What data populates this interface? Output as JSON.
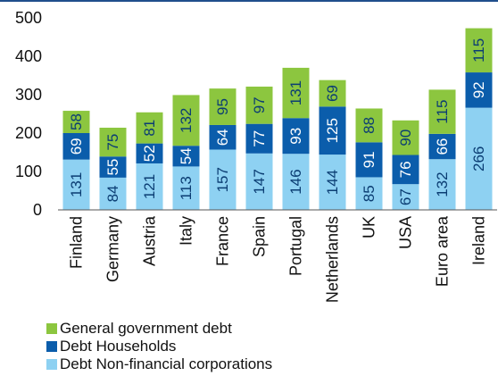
{
  "chart_data": {
    "type": "bar",
    "stacked": true,
    "categories": [
      "Finland",
      "Germany",
      "Austria",
      "Italy",
      "France",
      "Spain",
      "Portugal",
      "Netherlands",
      "UK",
      "USA",
      "Euro area",
      "Ireland"
    ],
    "series": [
      {
        "name": "Debt Non-financial corporations",
        "color": "#8ed1f2",
        "values": [
          131,
          84,
          121,
          113,
          157,
          147,
          146,
          144,
          85,
          67,
          132,
          266
        ]
      },
      {
        "name": "Debt Households",
        "color": "#0b5dab",
        "values": [
          69,
          55,
          52,
          54,
          64,
          77,
          93,
          125,
          91,
          76,
          66,
          92
        ]
      },
      {
        "name": "General government debt",
        "color": "#8cc63f",
        "values": [
          58,
          75,
          81,
          132,
          95,
          97,
          131,
          69,
          88,
          90,
          115,
          115
        ]
      }
    ],
    "title": "",
    "xlabel": "",
    "ylabel": "",
    "ylim": [
      0,
      500
    ],
    "yticks": [
      0,
      100,
      200,
      300,
      400,
      500
    ],
    "grid": false,
    "legend_position": "bottom-left"
  },
  "legend": {
    "items": [
      {
        "label": "General government debt",
        "color": "#8cc63f"
      },
      {
        "label": "Debt Households",
        "color": "#0b5dab"
      },
      {
        "label": "Debt Non-financial corporations",
        "color": "#8ed1f2"
      }
    ]
  }
}
